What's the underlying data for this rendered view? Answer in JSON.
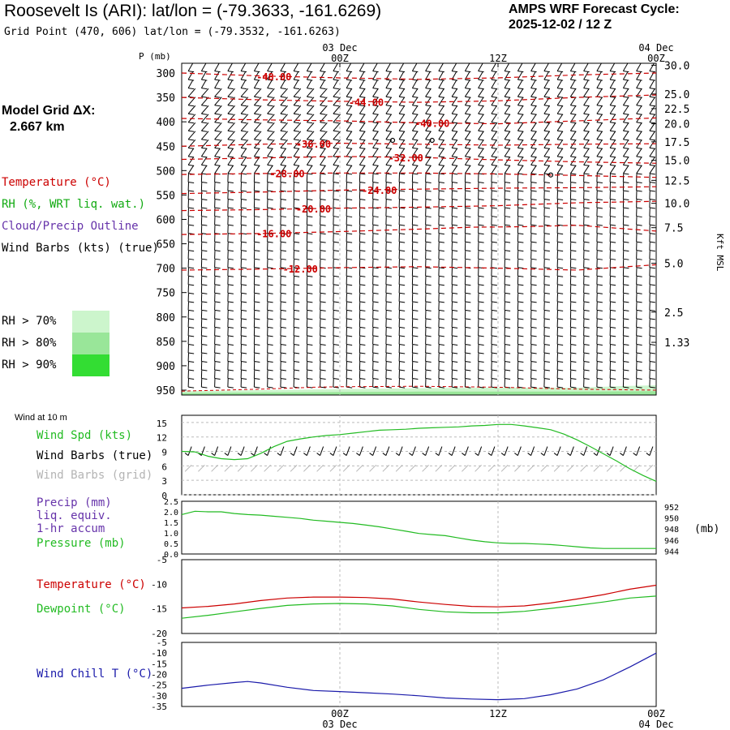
{
  "header": {
    "title": "Roosevelt Is (ARI):  lat/lon = (-79.3633, -161.6269)",
    "subtitle": "Grid Point (470, 606) lat/lon = (-79.3532, -161.6263)",
    "cycle_label": "AMPS WRF Forecast Cycle:",
    "cycle_value": "2025-12-02 / 12  Z"
  },
  "left_panel": {
    "model_grid_label": "Model Grid ΔX:",
    "model_grid_value": "2.667 km",
    "legend": [
      {
        "label": "Temperature (°C)",
        "color": "#cc0000"
      },
      {
        "label": "RH (%, WRT liq. wat.)",
        "color": "#11aa11"
      },
      {
        "label": "Cloud/Precip Outline",
        "color": "#6633aa"
      },
      {
        "label": "Wind Barbs (kts) (true)",
        "color": "#000000"
      }
    ],
    "rh_legend": [
      {
        "label": "RH > 70%",
        "color": "#ccf5cc"
      },
      {
        "label": "RH > 80%",
        "color": "#99e699"
      },
      {
        "label": "RH > 90%",
        "color": "#33dd33"
      }
    ]
  },
  "time_axis": {
    "top_labels": [
      {
        "day": "03 Dec",
        "hour": "00Z",
        "t": 0
      },
      {
        "day": "",
        "hour": "12Z",
        "t": 12
      },
      {
        "day": "04 Dec",
        "hour": "00Z",
        "t": 24
      }
    ],
    "bottom_labels": [
      {
        "hour": "00Z",
        "day": "03 Dec",
        "t": 0
      },
      {
        "hour": "12Z",
        "day": "",
        "t": 12
      },
      {
        "hour": "00Z",
        "day": "04 Dec",
        "t": 24
      }
    ],
    "t_start": -12,
    "t_end": 24
  },
  "chart_data": [
    {
      "type": "contour",
      "panel": "vertical-profile",
      "ylabel": "P (mb)",
      "y2label": "Kft MSL",
      "pressure_ticks": [
        300,
        350,
        400,
        450,
        500,
        550,
        600,
        650,
        700,
        750,
        800,
        850,
        900,
        950
      ],
      "pressure_range": [
        280,
        960
      ],
      "height_ticks": [
        {
          "label": "30.0",
          "p": 284
        },
        {
          "label": "25.0",
          "p": 343
        },
        {
          "label": "22.5",
          "p": 373
        },
        {
          "label": "20.0",
          "p": 404
        },
        {
          "label": "17.5",
          "p": 441
        },
        {
          "label": "15.0",
          "p": 479
        },
        {
          "label": "12.5",
          "p": 520
        },
        {
          "label": "10.0",
          "p": 567
        },
        {
          "label": "7.5",
          "p": 617
        },
        {
          "label": "5.0",
          "p": 690
        },
        {
          "label": "2.5",
          "p": 790
        },
        {
          "label": "1.33",
          "p": 852
        }
      ],
      "temperature_contours": [
        {
          "label": "-48.00",
          "label_t": -5,
          "t": [
            -12,
            -6,
            0,
            6,
            12,
            18,
            24
          ],
          "p": [
            300,
            306,
            310,
            313,
            310,
            304,
            300
          ]
        },
        {
          "label": "-44.00",
          "label_t": 2,
          "t": [
            -12,
            -6,
            0,
            6,
            12,
            18,
            24
          ],
          "p": [
            350,
            355,
            358,
            360,
            357,
            350,
            345
          ]
        },
        {
          "label": "-40.00",
          "label_t": 7,
          "t": [
            -12,
            -6,
            0,
            6,
            12,
            18,
            24
          ],
          "p": [
            393,
            396,
            398,
            402,
            404,
            398,
            392
          ]
        },
        {
          "label": "-36.00",
          "label_t": -2,
          "t": [
            -12,
            -6,
            0,
            6,
            12,
            18,
            24
          ],
          "p": [
            450,
            446,
            444,
            446,
            448,
            446,
            445
          ]
        },
        {
          "label": "-32.00",
          "label_t": 5,
          "t": [
            -12,
            -6,
            0,
            6,
            12,
            18,
            24
          ],
          "p": [
            477,
            474,
            471,
            473,
            478,
            482,
            485
          ]
        },
        {
          "label": "-28.00",
          "label_t": -4,
          "t": [
            -12,
            -6,
            0,
            6,
            12,
            18,
            24
          ],
          "p": [
            508,
            506,
            505,
            505,
            507,
            510,
            514
          ]
        },
        {
          "label": "-24.00",
          "label_t": 3,
          "t": [
            -12,
            -6,
            0,
            6,
            12,
            18,
            24
          ],
          "p": [
            547,
            544,
            540,
            538,
            536,
            535,
            533
          ]
        },
        {
          "label": "-20.00",
          "label_t": -2,
          "t": [
            -12,
            -6,
            0,
            6,
            12,
            18,
            24
          ],
          "p": [
            582,
            580,
            577,
            575,
            572,
            566,
            563
          ]
        },
        {
          "label": "-16.00",
          "label_t": -5,
          "t": [
            -12,
            -6,
            0,
            6,
            10,
            14,
            18,
            24
          ],
          "p": [
            631,
            629,
            625,
            620,
            616,
            615,
            612,
            624
          ]
        },
        {
          "label": "-12.00",
          "label_t": -3,
          "t": [
            -12,
            -6,
            0,
            6,
            12,
            18,
            24
          ],
          "p": [
            704,
            702,
            699,
            697,
            700,
            704,
            693
          ]
        }
      ],
      "surface_pressure": {
        "t": [
          -12,
          -6,
          -2,
          0,
          6,
          12,
          18,
          24
        ],
        "p": [
          952,
          948,
          944,
          943,
          942,
          944,
          948,
          950
        ]
      },
      "rh_areas": [
        {
          "level": 70,
          "t": [
            -12,
            -6,
            0,
            6,
            12,
            18,
            21,
            24
          ],
          "p": [
            952,
            950,
            948,
            946,
            945,
            945,
            942,
            940
          ]
        },
        {
          "level": 80,
          "t": [
            -12,
            -6,
            0,
            6,
            12,
            18,
            24
          ],
          "p": [
            956,
            955,
            954,
            953,
            953,
            953,
            952
          ]
        }
      ]
    },
    {
      "type": "line",
      "panel": "wind-10m",
      "title": "Wind at 10 m",
      "series_labels": [
        "Wind Spd (kts)",
        "Wind Barbs (true)",
        "Wind Barbs (grid)"
      ],
      "y_ticks": [
        0,
        3,
        6,
        9,
        12,
        15
      ],
      "ylim": [
        0,
        16.5
      ],
      "series": [
        {
          "name": "Wind Spd (kts)",
          "color": "#22bb22",
          "t": [
            -12,
            -11,
            -10,
            -9,
            -8,
            -7,
            -6,
            -5,
            -4,
            -3,
            -2,
            -1,
            0,
            1,
            2,
            3,
            4,
            5,
            6,
            7,
            8,
            9,
            10,
            11,
            12,
            13,
            14,
            15,
            16,
            17,
            18,
            19,
            20,
            21,
            22,
            23,
            24
          ],
          "values": [
            9,
            8.9,
            8,
            7.5,
            7.3,
            7.5,
            8.6,
            10,
            11.1,
            11.6,
            12,
            12.3,
            12.5,
            12.8,
            13.1,
            13.4,
            13.5,
            13.6,
            13.8,
            13.9,
            14.0,
            14.1,
            14.3,
            14.4,
            14.6,
            14.6,
            14.3,
            13.9,
            13.5,
            12.6,
            11.4,
            10.0,
            8.5,
            7.0,
            5.4,
            4.0,
            2.8
          ]
        }
      ]
    },
    {
      "type": "line",
      "panel": "precip-pressure",
      "series_labels": [
        "Precip (mm)",
        "liq. equiv.",
        "1-hr accum",
        "Pressure (mb)"
      ],
      "y_ticks": [
        "0.0",
        "0.5",
        "1.0",
        "1.5",
        "2.0",
        "2.5"
      ],
      "ylim": [
        0,
        2.5
      ],
      "y2_ticks": [
        "944",
        "946",
        "948",
        "950",
        "952"
      ],
      "y2lim": [
        943.5,
        953.0
      ],
      "y2label": "(mb)",
      "series": [
        {
          "name": "Pressure (mb)",
          "color": "#22bb22",
          "axis": "y2",
          "t": [
            -12,
            -11,
            -10,
            -9,
            -8,
            -7,
            -6,
            -5,
            -4,
            -3,
            -2,
            -1,
            0,
            1,
            2,
            3,
            4,
            5,
            6,
            7,
            8,
            9,
            10,
            11,
            12,
            13,
            14,
            15,
            16,
            17,
            18,
            19,
            20,
            21,
            22,
            23,
            24
          ],
          "values": [
            950.6,
            951.2,
            951.1,
            951.1,
            950.8,
            950.6,
            950.5,
            950.3,
            950.1,
            949.9,
            949.6,
            949.4,
            949.2,
            949.0,
            948.7,
            948.4,
            948.0,
            947.6,
            947.2,
            947.0,
            946.8,
            946.4,
            946.0,
            945.7,
            945.5,
            945.4,
            945.4,
            945.3,
            945.2,
            945.0,
            944.8,
            944.6,
            944.5,
            944.5,
            944.5,
            944.5,
            944.5
          ]
        }
      ]
    },
    {
      "type": "line",
      "panel": "temperature",
      "series_labels": [
        "Temperature (°C)",
        "Dewpoint (°C)"
      ],
      "y_ticks": [
        "-5",
        "-10",
        "-15",
        "-20"
      ],
      "ylim": [
        -20,
        -5
      ],
      "series": [
        {
          "name": "Temperature (°C)",
          "color": "#cc0000",
          "t": [
            -12,
            -10,
            -8,
            -6,
            -4,
            -2,
            0,
            2,
            4,
            6,
            8,
            10,
            12,
            14,
            16,
            18,
            20,
            22,
            24
          ],
          "values": [
            -14.8,
            -14.5,
            -14.0,
            -13.3,
            -12.8,
            -12.6,
            -12.6,
            -12.7,
            -13.0,
            -13.6,
            -14.1,
            -14.5,
            -14.6,
            -14.4,
            -13.8,
            -13.0,
            -12.1,
            -11.0,
            -10.2
          ]
        },
        {
          "name": "Dewpoint (°C)",
          "color": "#22bb22",
          "t": [
            -12,
            -10,
            -8,
            -6,
            -4,
            -2,
            0,
            2,
            4,
            6,
            8,
            10,
            12,
            14,
            16,
            18,
            20,
            22,
            24
          ],
          "values": [
            -16.9,
            -16.3,
            -15.6,
            -14.9,
            -14.3,
            -14.0,
            -13.9,
            -14.0,
            -14.4,
            -15.1,
            -15.6,
            -15.8,
            -15.8,
            -15.5,
            -14.9,
            -14.3,
            -13.6,
            -12.8,
            -12.4
          ]
        }
      ]
    },
    {
      "type": "line",
      "panel": "wind-chill",
      "series_labels": [
        "Wind Chill T (°C)"
      ],
      "y_ticks": [
        "-5",
        "-10",
        "-15",
        "-20",
        "-25",
        "-30",
        "-35"
      ],
      "ylim": [
        -35,
        -5
      ],
      "series": [
        {
          "name": "Wind Chill T (°C)",
          "color": "#1a1aaa",
          "t": [
            -12,
            -10,
            -8,
            -7,
            -6,
            -4,
            -2,
            0,
            2,
            4,
            6,
            8,
            10,
            12,
            14,
            16,
            18,
            20,
            22,
            24
          ],
          "values": [
            -26.5,
            -25.0,
            -23.8,
            -23.3,
            -24.0,
            -26.0,
            -27.5,
            -28.0,
            -28.6,
            -29.2,
            -30.0,
            -31.0,
            -31.5,
            -31.8,
            -31.3,
            -29.5,
            -26.8,
            -22.5,
            -16.5,
            -10.0
          ]
        }
      ]
    }
  ]
}
